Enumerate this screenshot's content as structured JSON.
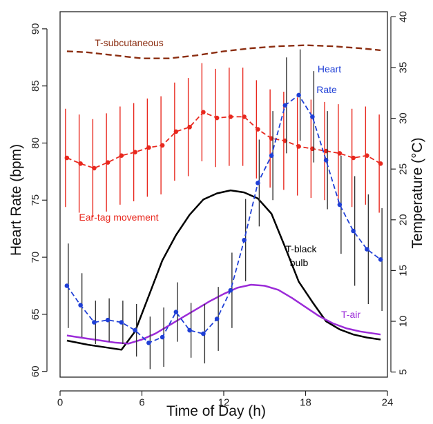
{
  "chart_data": {
    "type": "line",
    "xlabel": "Time of Day (h)",
    "ylabel": "Heart Rate (bpm)",
    "y2label": "Temperature (°C)",
    "xlim": [
      0,
      24
    ],
    "ylim": [
      59.5,
      91.5
    ],
    "y2lim": [
      4.5,
      40.5
    ],
    "x_ticks": [
      0,
      6,
      12,
      18,
      24
    ],
    "y_ticks": [
      60,
      65,
      70,
      75,
      80,
      85,
      90
    ],
    "y2_ticks": [
      5,
      10,
      15,
      20,
      25,
      30,
      35,
      40
    ],
    "grid": false,
    "legend": "none",
    "series": [
      {
        "name": "Heart Rate",
        "axis": "left",
        "color": "#1f3fd6",
        "style": "dashed-with-points",
        "x": [
          0.5,
          1.5,
          2.5,
          3.5,
          4.5,
          5.5,
          6.5,
          7.5,
          8.5,
          9.5,
          10.5,
          11.5,
          12.5,
          13.5,
          14.5,
          15.5,
          16.5,
          17.5,
          18.5,
          19.5,
          20.5,
          21.5,
          22.5,
          23.5
        ],
        "y": [
          67.5,
          65.8,
          64.3,
          64.5,
          64.3,
          63.6,
          62.5,
          63.0,
          65.2,
          63.6,
          63.3,
          64.6,
          67.1,
          71.5,
          76.5,
          78.9,
          83.3,
          84.2,
          82.3,
          78.5,
          74.6,
          72.3,
          70.7,
          69.8
        ],
        "error": [
          3.7,
          2.8,
          1.9,
          1.9,
          1.9,
          2.3,
          2.3,
          2.6,
          2.6,
          2.4,
          2.6,
          2.8,
          3.3,
          3.6,
          3.8,
          3.9,
          4.2,
          4.0,
          4.0,
          4.3,
          4.3,
          4.8,
          4.8,
          4.5
        ]
      },
      {
        "name": "Ear-tag movement",
        "axis": "left",
        "color": "#e8281e",
        "style": "dashed-with-points",
        "x": [
          0.5,
          1.5,
          2.5,
          3.5,
          4.5,
          5.5,
          6.5,
          7.5,
          8.5,
          9.5,
          10.5,
          11.5,
          12.5,
          13.5,
          14.5,
          15.5,
          16.5,
          17.5,
          18.5,
          19.5,
          20.5,
          21.5,
          22.5,
          23.5
        ],
        "y": [
          78.7,
          78.2,
          77.8,
          78.3,
          78.9,
          79.2,
          79.6,
          79.8,
          81.0,
          81.4,
          82.7,
          82.2,
          82.3,
          82.3,
          81.2,
          80.4,
          80.2,
          79.7,
          79.5,
          79.3,
          79.1,
          78.7,
          78.9,
          78.2
        ],
        "error": [
          4.3,
          4.3,
          4.3,
          4.3,
          4.3,
          4.3,
          4.3,
          4.3,
          4.3,
          4.3,
          4.3,
          4.3,
          4.3,
          4.3,
          4.3,
          4.3,
          4.3,
          4.3,
          4.3,
          4.3,
          4.3,
          4.3,
          4.3,
          4.3
        ]
      },
      {
        "name": "T-subcutaneous",
        "axis": "right",
        "color": "#8b2d10",
        "style": "dashed",
        "x": [
          0.5,
          2,
          4,
          6,
          8,
          10,
          12,
          14,
          16,
          18,
          20,
          22,
          23.5
        ],
        "y": [
          36.6,
          36.5,
          36.2,
          35.9,
          35.9,
          36.2,
          36.6,
          36.9,
          37.1,
          37.2,
          37.1,
          36.9,
          36.7
        ]
      },
      {
        "name": "T-black bulb",
        "axis": "right",
        "color": "#000000",
        "style": "solid",
        "x": [
          0.5,
          2,
          3.5,
          4.5,
          5.5,
          6.5,
          7.5,
          8.5,
          9.5,
          10.5,
          11.5,
          12.5,
          13.5,
          14.5,
          15.5,
          16.5,
          17.5,
          18.5,
          19.5,
          20.5,
          21.5,
          22.5,
          23.5
        ],
        "y": [
          8.1,
          7.7,
          7.4,
          7.2,
          9.0,
          12.5,
          16.0,
          18.5,
          20.5,
          22.0,
          22.6,
          22.9,
          22.7,
          22.1,
          20.6,
          17.3,
          13.9,
          11.9,
          10.0,
          9.2,
          8.7,
          8.4,
          8.2
        ]
      },
      {
        "name": "T-air",
        "axis": "right",
        "color": "#9b2bd8",
        "style": "solid",
        "x": [
          0.5,
          2,
          4,
          5,
          6,
          7,
          8,
          9,
          10,
          11,
          12,
          13,
          14,
          15,
          16,
          17,
          18,
          19,
          20,
          21,
          22,
          23.5
        ],
        "y": [
          8.6,
          8.3,
          7.9,
          7.8,
          8.2,
          8.8,
          9.6,
          10.4,
          11.2,
          12.0,
          12.7,
          13.3,
          13.6,
          13.5,
          13.1,
          12.3,
          11.4,
          10.5,
          9.8,
          9.3,
          9.0,
          8.7
        ]
      }
    ],
    "annotations": [
      {
        "text": "T-subcutaneous",
        "color": "#8b2d10"
      },
      {
        "text": "Heart",
        "color": "#1f3fd6"
      },
      {
        "text": "Rate",
        "color": "#1f3fd6"
      },
      {
        "text": "Ear-tag movement",
        "color": "#e8281e"
      },
      {
        "text": "T-black",
        "color": "#000000"
      },
      {
        "text": "bulb",
        "color": "#000000"
      },
      {
        "text": "T-air",
        "color": "#9b2bd8"
      }
    ]
  }
}
